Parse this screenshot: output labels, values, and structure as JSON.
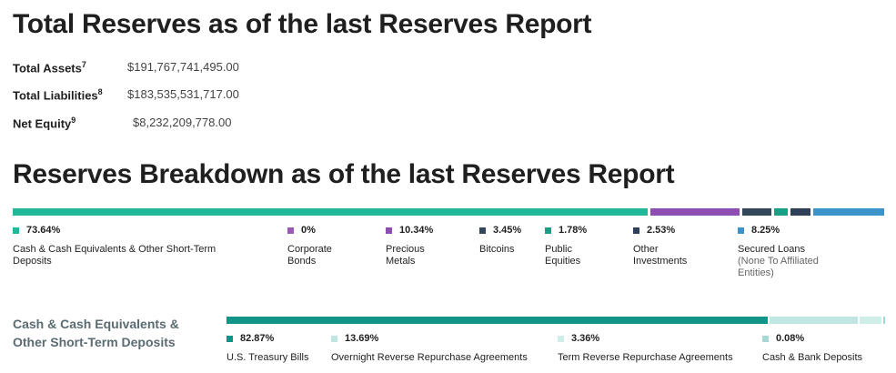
{
  "title": "Total Reserves as of the last Reserves Report",
  "summary": [
    {
      "label": "Total Assets",
      "sup": "7",
      "value": "$191,767,741,495.00"
    },
    {
      "label": "Total Liabilities",
      "sup": "8",
      "value": "$183,535,531,717.00"
    },
    {
      "label": "Net Equity",
      "sup": "9",
      "value": "$8,232,209,778.00"
    }
  ],
  "breakdown_title": "Reserves Breakdown as of the last Reserves Report",
  "breakdown": [
    {
      "pct": "73.64%",
      "label": "Cash & Cash Equivalents & Other Short-Term Deposits",
      "sub": "",
      "color": "#21b89a"
    },
    {
      "pct": "0%",
      "label": "Corporate Bonds",
      "sub": "",
      "color": "#9b59b6"
    },
    {
      "pct": "10.34%",
      "label": "Precious Metals",
      "sub": "",
      "color": "#8e4db0"
    },
    {
      "pct": "3.45%",
      "label": "Bitcoins",
      "sub": "",
      "color": "#33475b"
    },
    {
      "pct": "1.78%",
      "label": "Public Equities",
      "sub": "",
      "color": "#16a085"
    },
    {
      "pct": "2.53%",
      "label": "Other Investments",
      "sub": "",
      "color": "#2e4057"
    },
    {
      "pct": "8.25%",
      "label": "Secured Loans",
      "sub": "(None To Affiliated Entities)",
      "color": "#3a93c9"
    }
  ],
  "cash_title": "Cash & Cash Equivalents & Other Short-Term Deposits",
  "cash": [
    {
      "pct": "82.87%",
      "label": "U.S. Treasury Bills",
      "color": "#139488"
    },
    {
      "pct": "13.69%",
      "label": "Overnight Reverse Repurchase Agreements",
      "color": "#bfe6e2"
    },
    {
      "pct": "3.36%",
      "label": "Term Reverse Repurchase Agreements",
      "color": "#cfeeea"
    },
    {
      "pct": "0.08%",
      "label": "Cash & Bank Deposits",
      "color": "#a7d8d4"
    }
  ]
}
